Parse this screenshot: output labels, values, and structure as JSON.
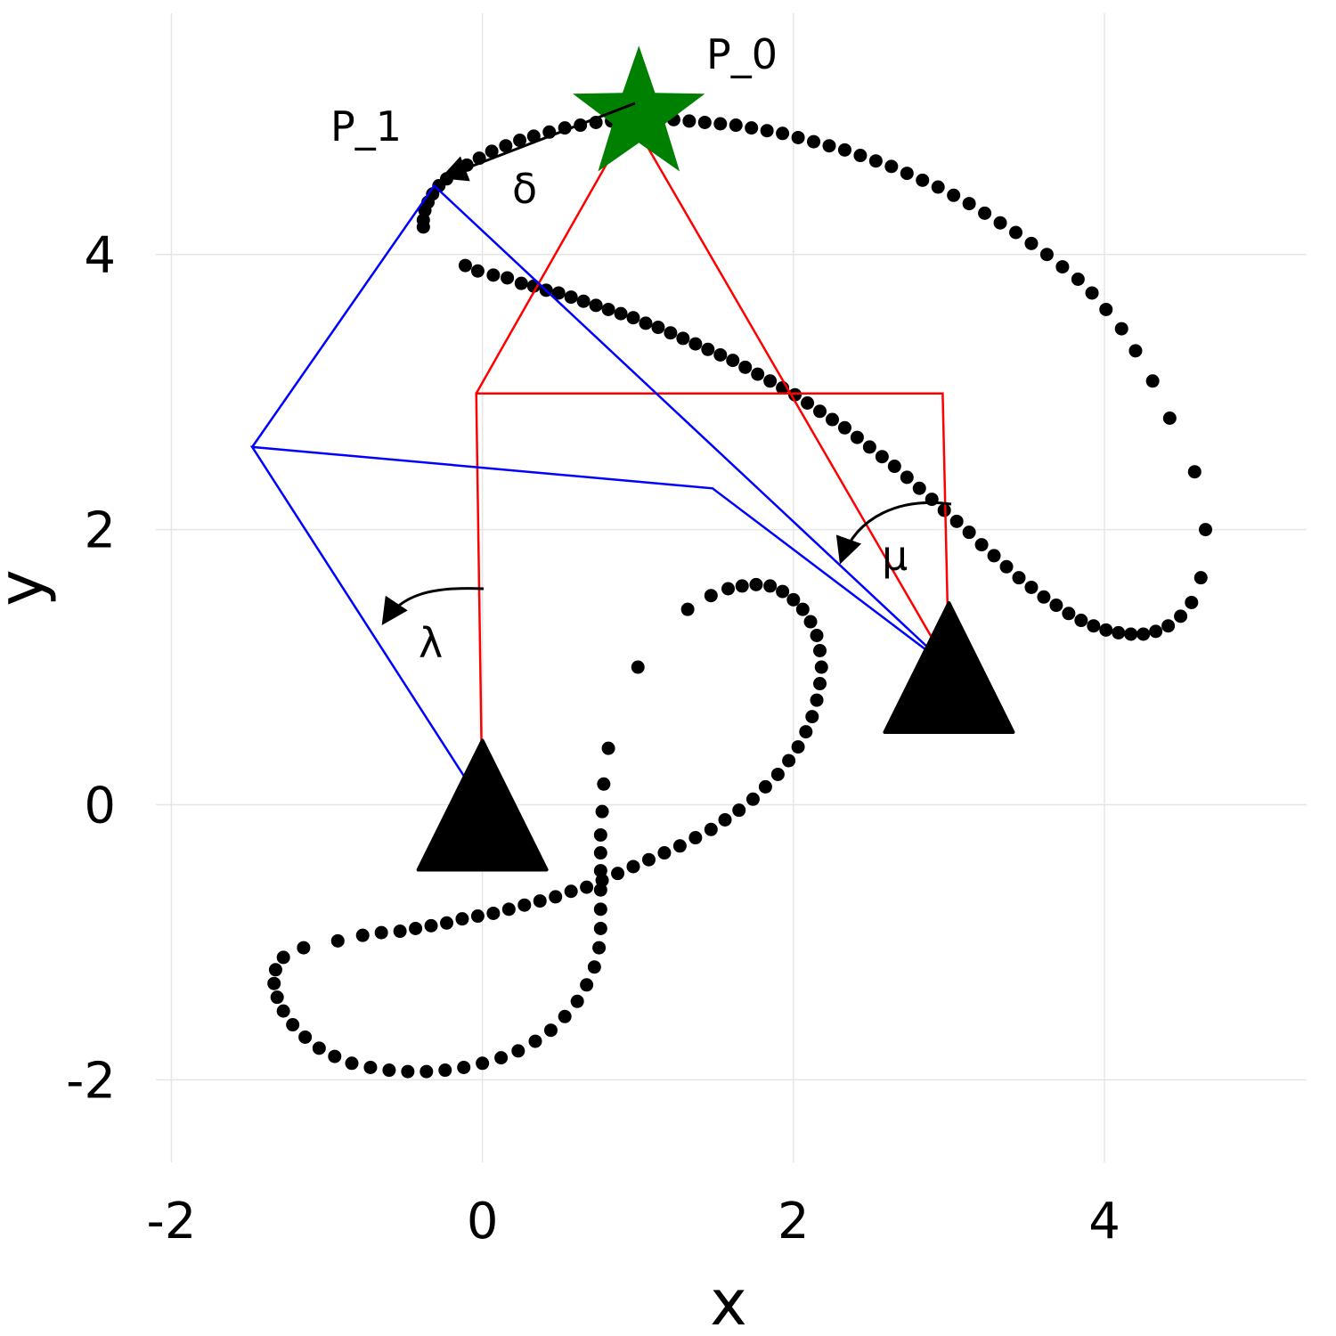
{
  "chart_data": {
    "type": "scatter",
    "title": "",
    "xlabel": "x",
    "ylabel": "y",
    "xlim": [
      -2.1,
      5.3
    ],
    "ylim": [
      -2.6,
      5.85
    ],
    "grid": true,
    "legend": "none",
    "x_ticks": [
      -2,
      0,
      2,
      4
    ],
    "y_ticks": [
      -2,
      0,
      2,
      4
    ],
    "x_tick_labels": [
      "-2",
      "0",
      "2",
      "4"
    ],
    "y_tick_labels": [
      "-2",
      "0",
      "2",
      "4"
    ],
    "colors": {
      "red_linkage": "#ff0000",
      "blue_linkage": "#0000ff",
      "star": "#008000",
      "points": "#000000",
      "grid": "#e6e6e6"
    },
    "red_linkage": [
      [
        0,
        0
      ],
      [
        -0.04,
        2.99
      ],
      [
        2.96,
        2.99
      ],
      [
        3.0,
        1.0
      ],
      [
        0.96,
        4.98
      ],
      [
        -0.04,
        2.99
      ]
    ],
    "blue_linkage": [
      [
        0,
        0
      ],
      [
        -1.48,
        2.6
      ],
      [
        1.48,
        2.3
      ],
      [
        3.0,
        1.0
      ],
      [
        -0.31,
        4.5
      ],
      [
        -1.48,
        2.6
      ]
    ],
    "triangles": [
      {
        "name": "ground-pivot-0",
        "x": 0,
        "y": 0
      },
      {
        "name": "ground-pivot-1",
        "x": 3.0,
        "y": 1.0
      }
    ],
    "star": {
      "label": "P_0",
      "x": 0.96,
      "y": 4.98
    },
    "points_labels": {
      "p1": "P_1"
    },
    "annotations": [
      {
        "label": "δ",
        "x": 0.26,
        "y": 4.43
      },
      {
        "label": "μ",
        "x": 2.61,
        "y": 1.76
      },
      {
        "label": "λ",
        "x": -0.34,
        "y": 1.16
      }
    ],
    "series": [
      {
        "values": [
          [
            -0.38,
            4.2
          ],
          [
            -0.38,
            4.25
          ],
          [
            -0.37,
            4.32
          ],
          [
            -0.35,
            4.38
          ],
          [
            -0.32,
            4.44
          ],
          [
            -0.28,
            4.5
          ],
          [
            -0.23,
            4.55
          ],
          [
            -0.17,
            4.6
          ],
          [
            -0.1,
            4.65
          ],
          [
            -0.02,
            4.7
          ],
          [
            0.06,
            4.75
          ],
          [
            0.15,
            4.79
          ],
          [
            0.24,
            4.83
          ],
          [
            0.33,
            4.86
          ],
          [
            0.43,
            4.89
          ],
          [
            0.53,
            4.92
          ],
          [
            0.63,
            4.94
          ],
          [
            0.73,
            4.96
          ],
          [
            0.83,
            4.97
          ],
          [
            0.93,
            4.98
          ],
          [
            1.03,
            4.98
          ],
          [
            1.13,
            4.98
          ],
          [
            1.23,
            4.98
          ],
          [
            1.33,
            4.97
          ],
          [
            1.43,
            4.96
          ],
          [
            1.53,
            4.95
          ],
          [
            1.63,
            4.94
          ],
          [
            1.73,
            4.92
          ],
          [
            1.83,
            4.9
          ],
          [
            1.93,
            4.88
          ],
          [
            2.03,
            4.85
          ],
          [
            2.13,
            4.82
          ],
          [
            2.23,
            4.79
          ],
          [
            2.33,
            4.76
          ],
          [
            2.43,
            4.72
          ],
          [
            2.53,
            4.68
          ],
          [
            2.63,
            4.64
          ],
          [
            2.73,
            4.59
          ],
          [
            2.83,
            4.54
          ],
          [
            2.93,
            4.49
          ],
          [
            3.03,
            4.43
          ],
          [
            3.13,
            4.37
          ],
          [
            3.23,
            4.3
          ],
          [
            3.33,
            4.23
          ],
          [
            3.43,
            4.16
          ],
          [
            3.53,
            4.08
          ],
          [
            3.63,
            4.0
          ],
          [
            3.73,
            3.91
          ],
          [
            3.83,
            3.82
          ],
          [
            3.92,
            3.72
          ],
          [
            4.01,
            3.6
          ],
          [
            4.11,
            3.46
          ],
          [
            4.2,
            3.3
          ],
          [
            4.31,
            3.08
          ],
          [
            4.42,
            2.81
          ],
          [
            4.58,
            2.42
          ],
          [
            4.65,
            2.0
          ],
          [
            4.62,
            1.65
          ],
          [
            4.56,
            1.47
          ],
          [
            4.49,
            1.37
          ],
          [
            4.41,
            1.3
          ],
          [
            4.33,
            1.26
          ],
          [
            4.25,
            1.24
          ],
          [
            4.17,
            1.24
          ],
          [
            4.09,
            1.25
          ],
          [
            4.01,
            1.27
          ],
          [
            3.93,
            1.3
          ],
          [
            3.85,
            1.34
          ],
          [
            3.77,
            1.39
          ],
          [
            3.69,
            1.45
          ],
          [
            3.61,
            1.51
          ],
          [
            3.53,
            1.58
          ],
          [
            3.45,
            1.65
          ],
          [
            3.37,
            1.73
          ],
          [
            3.29,
            1.81
          ],
          [
            3.21,
            1.89
          ],
          [
            3.13,
            1.98
          ],
          [
            3.05,
            2.06
          ],
          [
            2.97,
            2.14
          ],
          [
            2.89,
            2.22
          ],
          [
            2.81,
            2.3
          ],
          [
            2.73,
            2.38
          ],
          [
            2.65,
            2.46
          ],
          [
            2.57,
            2.53
          ],
          [
            2.49,
            2.6
          ],
          [
            2.41,
            2.67
          ],
          [
            2.33,
            2.74
          ],
          [
            2.25,
            2.8
          ],
          [
            2.17,
            2.86
          ],
          [
            2.09,
            2.92
          ],
          [
            2.01,
            2.98
          ],
          [
            1.93,
            3.03
          ],
          [
            1.85,
            3.08
          ],
          [
            1.77,
            3.13
          ],
          [
            1.69,
            3.18
          ],
          [
            1.61,
            3.23
          ],
          [
            1.53,
            3.27
          ],
          [
            1.45,
            3.31
          ],
          [
            1.37,
            3.35
          ],
          [
            1.29,
            3.39
          ],
          [
            1.21,
            3.43
          ],
          [
            1.13,
            3.47
          ],
          [
            1.05,
            3.5
          ],
          [
            0.97,
            3.54
          ],
          [
            0.89,
            3.57
          ],
          [
            0.81,
            3.6
          ],
          [
            0.73,
            3.63
          ],
          [
            0.65,
            3.66
          ],
          [
            0.57,
            3.69
          ],
          [
            0.49,
            3.72
          ],
          [
            0.41,
            3.74
          ],
          [
            0.33,
            3.77
          ],
          [
            0.25,
            3.79
          ],
          [
            0.16,
            3.83
          ],
          [
            0.07,
            3.85
          ],
          [
            -0.03,
            3.88
          ],
          [
            -0.11,
            3.92
          ],
          [
            1.0,
            1.0
          ],
          [
            1.32,
            1.42
          ],
          [
            1.47,
            1.52
          ],
          [
            1.58,
            1.57
          ],
          [
            1.67,
            1.59
          ],
          [
            1.76,
            1.6
          ],
          [
            1.85,
            1.59
          ],
          [
            1.93,
            1.55
          ],
          [
            2.0,
            1.49
          ],
          [
            2.06,
            1.42
          ],
          [
            2.11,
            1.33
          ],
          [
            2.15,
            1.23
          ],
          [
            2.17,
            1.12
          ],
          [
            2.18,
            1.0
          ],
          [
            2.17,
            0.88
          ],
          [
            2.15,
            0.76
          ],
          [
            2.12,
            0.64
          ],
          [
            2.08,
            0.53
          ],
          [
            2.03,
            0.42
          ],
          [
            1.97,
            0.32
          ],
          [
            1.9,
            0.22
          ],
          [
            1.82,
            0.13
          ],
          [
            1.74,
            0.04
          ],
          [
            1.65,
            -0.04
          ],
          [
            1.56,
            -0.11
          ],
          [
            1.47,
            -0.18
          ],
          [
            1.37,
            -0.24
          ],
          [
            1.27,
            -0.3
          ],
          [
            1.17,
            -0.35
          ],
          [
            1.07,
            -0.4
          ],
          [
            0.97,
            -0.45
          ],
          [
            0.87,
            -0.5
          ],
          [
            0.77,
            -0.55
          ],
          [
            0.67,
            -0.6
          ],
          [
            0.57,
            -0.63
          ],
          [
            0.47,
            -0.67
          ],
          [
            0.37,
            -0.7
          ],
          [
            0.27,
            -0.73
          ],
          [
            0.17,
            -0.76
          ],
          [
            0.07,
            -0.79
          ],
          [
            -0.03,
            -0.81
          ],
          [
            -0.13,
            -0.83
          ],
          [
            -0.23,
            -0.86
          ],
          [
            -0.33,
            -0.88
          ],
          [
            -0.43,
            -0.9
          ],
          [
            -0.53,
            -0.92
          ],
          [
            -0.65,
            -0.93
          ],
          [
            -0.77,
            -0.95
          ],
          [
            -0.93,
            -0.99
          ],
          [
            -1.15,
            -1.04
          ],
          [
            -1.28,
            -1.11
          ],
          [
            -1.33,
            -1.2
          ],
          [
            -1.34,
            -1.3
          ],
          [
            -1.32,
            -1.4
          ],
          [
            -1.28,
            -1.5
          ],
          [
            -1.22,
            -1.6
          ],
          [
            -1.14,
            -1.69
          ],
          [
            -1.05,
            -1.77
          ],
          [
            -0.95,
            -1.83
          ],
          [
            -0.84,
            -1.88
          ],
          [
            -0.72,
            -1.91
          ],
          [
            -0.6,
            -1.93
          ],
          [
            -0.48,
            -1.94
          ],
          [
            -0.36,
            -1.94
          ],
          [
            -0.24,
            -1.93
          ],
          [
            -0.12,
            -1.91
          ],
          [
            0.0,
            -1.88
          ],
          [
            0.12,
            -1.84
          ],
          [
            0.23,
            -1.79
          ],
          [
            0.34,
            -1.72
          ],
          [
            0.44,
            -1.64
          ],
          [
            0.53,
            -1.54
          ],
          [
            0.61,
            -1.43
          ],
          [
            0.67,
            -1.31
          ],
          [
            0.72,
            -1.18
          ],
          [
            0.75,
            -1.04
          ],
          [
            0.76,
            -0.9
          ],
          [
            0.76,
            -0.76
          ],
          [
            0.76,
            -0.62
          ],
          [
            0.76,
            -0.48
          ],
          [
            0.76,
            -0.35
          ],
          [
            0.76,
            -0.22
          ],
          [
            0.77,
            -0.05
          ],
          [
            0.78,
            0.15
          ],
          [
            0.81,
            0.41
          ]
        ]
      }
    ]
  }
}
